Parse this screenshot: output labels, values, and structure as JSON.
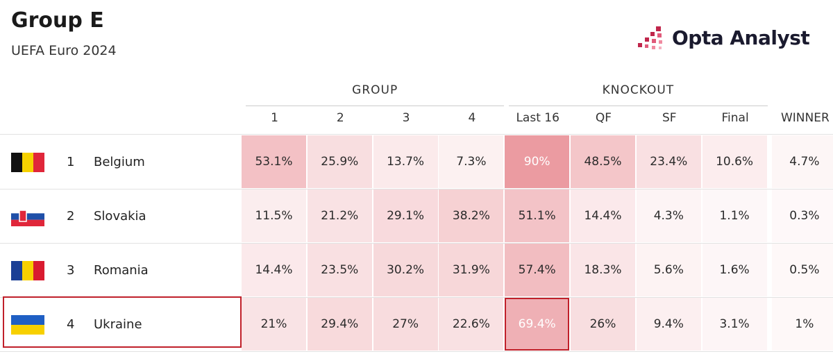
{
  "header": {
    "title": "Group E",
    "subtitle": "UEFA Euro 2024",
    "logo": "Opta Analyst"
  },
  "table": {
    "groups": [
      "GROUP",
      "KNOCKOUT"
    ],
    "columns": [
      "1",
      "2",
      "3",
      "4",
      "Last 16",
      "QF",
      "SF",
      "Final",
      "WINNER"
    ],
    "rows": [
      {
        "rank": "1",
        "team": "Belgium",
        "cells": [
          "53.1%",
          "25.9%",
          "13.7%",
          "7.3%",
          "90%",
          "48.5%",
          "23.4%",
          "10.6%",
          "4.7%"
        ]
      },
      {
        "rank": "2",
        "team": "Slovakia",
        "cells": [
          "11.5%",
          "21.2%",
          "29.1%",
          "38.2%",
          "51.1%",
          "14.4%",
          "4.3%",
          "1.1%",
          "0.3%"
        ]
      },
      {
        "rank": "3",
        "team": "Romania",
        "cells": [
          "14.4%",
          "23.5%",
          "30.2%",
          "31.9%",
          "57.4%",
          "18.3%",
          "5.6%",
          "1.6%",
          "0.5%"
        ]
      },
      {
        "rank": "4",
        "team": "Ukraine",
        "cells": [
          "21%",
          "29.4%",
          "27%",
          "22.6%",
          "69.4%",
          "26%",
          "9.4%",
          "3.1%",
          "1%"
        ]
      }
    ]
  }
}
